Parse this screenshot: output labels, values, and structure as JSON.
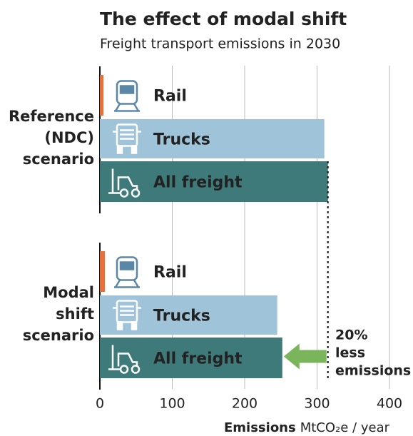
{
  "chart_data": {
    "type": "bar",
    "orientation": "horizontal",
    "title": "The effect of modal shift",
    "subtitle": "Freight transport emissions in 2030",
    "categories": [
      [
        "Reference",
        "(NDC)",
        "scenario"
      ],
      [
        "Modal",
        "shift",
        "scenario"
      ]
    ],
    "series": [
      {
        "name": "Rail",
        "color": "#e8703a",
        "label_color": "#5b87a6",
        "values": [
          5,
          7
        ]
      },
      {
        "name": "Trucks",
        "color": "#9fc4d9",
        "label_color": "#ffffff",
        "values": [
          310,
          245
        ]
      },
      {
        "name": "All freight",
        "color": "#3f7a7a",
        "label_color": "#ffffff",
        "values": [
          315,
          252
        ]
      }
    ],
    "xlim": [
      0,
      400
    ],
    "xticks": [
      0,
      100,
      200,
      300,
      400
    ],
    "grid": true,
    "xlabel": {
      "title": "Emissions",
      "unit": "MtCO₂e / year"
    },
    "annotation": {
      "lines": [
        "20%",
        "less",
        "emissions"
      ],
      "color": "#7ab55c"
    }
  }
}
